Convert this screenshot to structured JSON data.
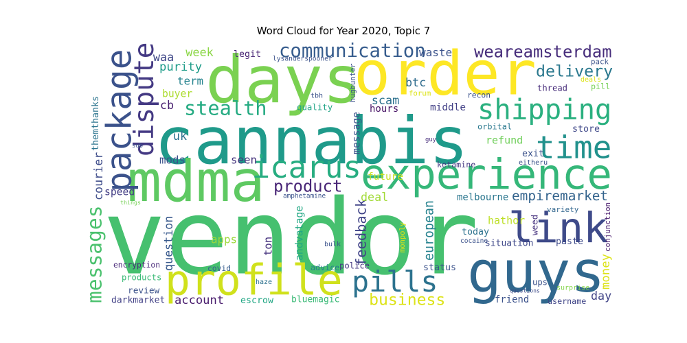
{
  "chart_data": {
    "type": "wordcloud",
    "title": "Word Cloud for Year 2020, Topic 7",
    "words": [
      {
        "text": "vendor",
        "color": "#46c06f"
      },
      {
        "text": "cannabis",
        "color": "#1f9a8a"
      },
      {
        "text": "order",
        "color": "#fde725"
      },
      {
        "text": "days",
        "color": "#7ad151"
      },
      {
        "text": "mdma",
        "color": "#5ec962"
      },
      {
        "text": "guys",
        "color": "#31688e"
      },
      {
        "text": "experience",
        "color": "#35b779"
      },
      {
        "text": "profile",
        "color": "#d0e11c"
      },
      {
        "text": "link",
        "color": "#3e4a89"
      },
      {
        "text": "time",
        "color": "#21918c"
      },
      {
        "text": "package",
        "color": "#3b528b"
      },
      {
        "text": "shipping",
        "color": "#2ab07f"
      },
      {
        "text": "icarus",
        "color": "#27ad81"
      },
      {
        "text": "pills",
        "color": "#2c728e"
      },
      {
        "text": "dispute",
        "color": "#443983"
      },
      {
        "text": "communication",
        "color": "#365c8d"
      },
      {
        "text": "weareamsterdam",
        "color": "#472d7b"
      },
      {
        "text": "stealth",
        "color": "#25ab82"
      },
      {
        "text": "delivery",
        "color": "#2a788e"
      },
      {
        "text": "product",
        "color": "#482576"
      },
      {
        "text": "messages",
        "color": "#4ac16d"
      },
      {
        "text": "business",
        "color": "#dde318"
      },
      {
        "text": "empiremarket",
        "color": "#33638d"
      },
      {
        "text": "melbourne",
        "color": "#2a768e"
      },
      {
        "text": "hathor",
        "color": "#bddf26"
      },
      {
        "text": "feedback",
        "color": "#404387"
      },
      {
        "text": "european",
        "color": "#26828e"
      },
      {
        "text": "products",
        "color": "#3aba76"
      },
      {
        "text": "ketamine",
        "color": "#453882"
      },
      {
        "text": "refund",
        "color": "#6ece58"
      },
      {
        "text": "store",
        "color": "#3f4889"
      },
      {
        "text": "orbital",
        "color": "#2a788e"
      },
      {
        "text": "exit",
        "color": "#3b528b"
      },
      {
        "text": "legit",
        "color": "#482475"
      },
      {
        "text": "quality",
        "color": "#20a486"
      },
      {
        "text": "scam",
        "color": "#2c718e"
      },
      {
        "text": "hours",
        "color": "#471365"
      },
      {
        "text": "middle",
        "color": "#424086"
      },
      {
        "text": "thread",
        "color": "#472c7a"
      },
      {
        "text": "pill",
        "color": "#75d054"
      },
      {
        "text": "btc",
        "color": "#2f6c8e"
      },
      {
        "text": "waste",
        "color": "#3b528b"
      },
      {
        "text": "purity",
        "color": "#1e9c89"
      },
      {
        "text": "term",
        "color": "#25838e"
      },
      {
        "text": "buyer",
        "color": "#addc30"
      },
      {
        "text": "week",
        "color": "#8bd646"
      },
      {
        "text": "waa",
        "color": "#3f4788"
      },
      {
        "text": "cb",
        "color": "#481f70"
      },
      {
        "text": "uk",
        "color": "#2c728e"
      },
      {
        "text": "seen",
        "color": "#45337d"
      },
      {
        "text": "mods",
        "color": "#3b528b"
      },
      {
        "text": "future",
        "color": "#c8e020"
      },
      {
        "text": "deal",
        "color": "#a2da37"
      },
      {
        "text": "speed",
        "color": "#433e85"
      },
      {
        "text": "courier",
        "color": "#3e4c8a"
      },
      {
        "text": "themthanks",
        "color": "#2b748e"
      },
      {
        "text": "question",
        "color": "#38598c"
      },
      {
        "text": "apps",
        "color": "#9dd93b"
      },
      {
        "text": "ton",
        "color": "#46337e"
      },
      {
        "text": "andvatage",
        "color": "#22a884"
      },
      {
        "text": "today",
        "color": "#2c728e"
      },
      {
        "text": "situation",
        "color": "#3f4889"
      },
      {
        "text": "paste",
        "color": "#3e4a89"
      },
      {
        "text": "status",
        "color": "#3b528b"
      },
      {
        "text": "money",
        "color": "#dde318"
      },
      {
        "text": "review",
        "color": "#3b528b"
      },
      {
        "text": "account",
        "color": "#481b6d"
      },
      {
        "text": "escrow",
        "color": "#22a785"
      },
      {
        "text": "bluemagic",
        "color": "#3aba76"
      },
      {
        "text": "darkmarket",
        "color": "#424186"
      },
      {
        "text": "encryption",
        "color": "#482878"
      },
      {
        "text": "friend",
        "color": "#3b528b"
      },
      {
        "text": "day",
        "color": "#414487"
      },
      {
        "text": "message",
        "color": "#3b528b"
      },
      {
        "text": "variety",
        "color": "#31668e"
      },
      {
        "text": "weed",
        "color": "#46327e"
      },
      {
        "text": "conjunction",
        "color": "#481a6c"
      },
      {
        "text": "police",
        "color": "#453781"
      },
      {
        "text": "advice",
        "color": "#277e8e"
      },
      {
        "text": "covid",
        "color": "#365d8d"
      },
      {
        "text": "bulk",
        "color": "#3b528b"
      },
      {
        "text": "monpoly",
        "color": "#dde318"
      },
      {
        "text": "cocaine",
        "color": "#3b528b"
      },
      {
        "text": "haze",
        "color": "#2c718e"
      },
      {
        "text": "questions",
        "color": "#3e4a89"
      },
      {
        "text": "ups",
        "color": "#3b528b"
      },
      {
        "text": "surprise",
        "color": "#84d44b"
      },
      {
        "text": "username",
        "color": "#404588"
      },
      {
        "text": "amphetamine",
        "color": "#3b528b"
      },
      {
        "text": "things",
        "color": "#75d054"
      },
      {
        "text": "sub",
        "color": "#3b528b"
      },
      {
        "text": "tbh",
        "color": "#3b528b"
      },
      {
        "text": "guy",
        "color": "#472d7b"
      },
      {
        "text": "eitheru",
        "color": "#3b528b"
      },
      {
        "text": "hugbunter",
        "color": "#3b528b"
      },
      {
        "text": "lysanderspooner",
        "color": "#3b528b"
      },
      {
        "text": "recon",
        "color": "#3b528b"
      },
      {
        "text": "forum",
        "color": "#dde318"
      },
      {
        "text": "deals",
        "color": "#dde318"
      },
      {
        "text": "pack",
        "color": "#3b528b"
      }
    ]
  }
}
